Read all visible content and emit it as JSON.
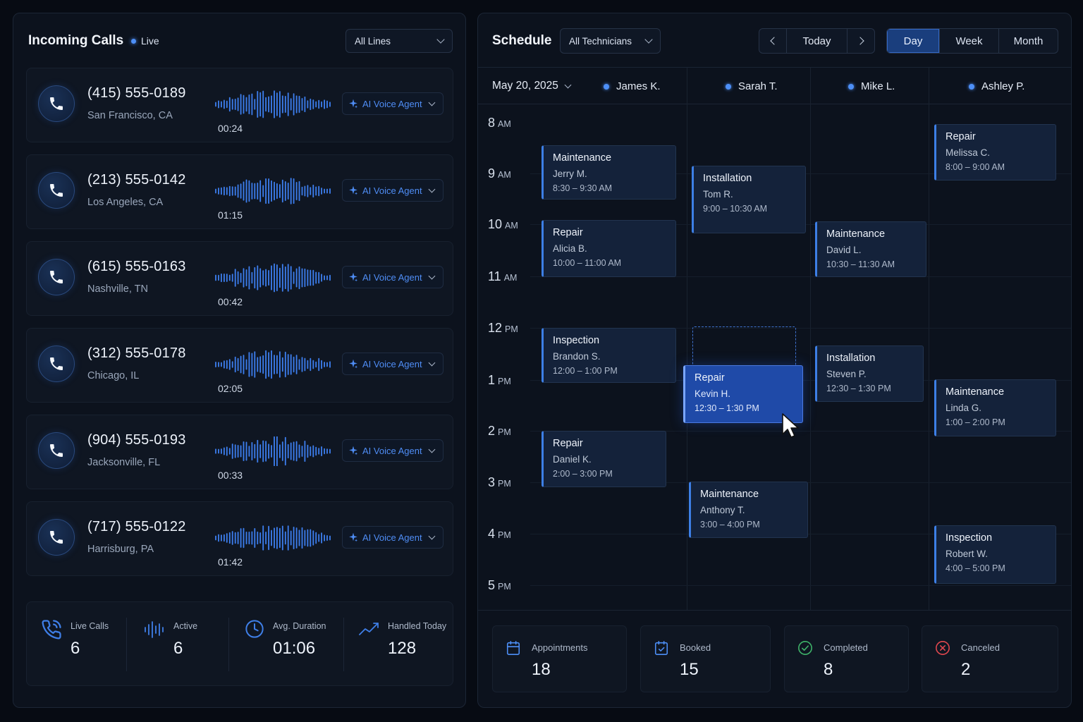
{
  "calls_panel": {
    "title": "Incoming Calls",
    "live_label": "Live",
    "lines_select": "All Lines",
    "agent_label": "AI Voice Agent",
    "calls": [
      {
        "number": "(415) 555-0189",
        "city": "San Francisco, CA",
        "duration": "00:24"
      },
      {
        "number": "(213) 555-0142",
        "city": "Los Angeles, CA",
        "duration": "01:15"
      },
      {
        "number": "(615) 555-0163",
        "city": "Nashville, TN",
        "duration": "00:42"
      },
      {
        "number": "(312) 555-0178",
        "city": "Chicago, IL",
        "duration": "02:05"
      },
      {
        "number": "(904) 555-0193",
        "city": "Jacksonville, FL",
        "duration": "00:33"
      },
      {
        "number": "(717) 555-0122",
        "city": "Harrisburg, PA",
        "duration": "01:42"
      }
    ],
    "stats": [
      {
        "label": "Live Calls",
        "value": "6",
        "icon": "phone-ringing-icon"
      },
      {
        "label": "Active",
        "value": "6",
        "icon": "waveform-icon"
      },
      {
        "label": "Avg. Duration",
        "value": "01:06",
        "icon": "clock-icon"
      },
      {
        "label": "Handled Today",
        "value": "128",
        "icon": "trend-line-icon"
      }
    ]
  },
  "schedule": {
    "title": "Schedule",
    "tech_select": "All Technicians",
    "today_label": "Today",
    "views": [
      "Day",
      "Week",
      "Month"
    ],
    "active_view": "Day",
    "date": "May 20, 2025",
    "technicians": [
      "James K.",
      "Sarah T.",
      "Mike L.",
      "Ashley P."
    ],
    "times": [
      {
        "hour": "8",
        "ap": "AM"
      },
      {
        "hour": "9",
        "ap": "AM"
      },
      {
        "hour": "10",
        "ap": "AM"
      },
      {
        "hour": "11",
        "ap": "AM"
      },
      {
        "hour": "12",
        "ap": "PM"
      },
      {
        "hour": "1",
        "ap": "PM"
      },
      {
        "hour": "2",
        "ap": "PM"
      },
      {
        "hour": "3",
        "ap": "PM"
      },
      {
        "hour": "4",
        "ap": "PM"
      },
      {
        "hour": "5",
        "ap": "PM"
      }
    ],
    "events": [
      {
        "type": "Maintenance",
        "name": "Jerry M.",
        "time": "8:30 – 9:30 AM"
      },
      {
        "type": "Repair",
        "name": "Alicia B.",
        "time": "10:00 – 11:00 AM"
      },
      {
        "type": "Inspection",
        "name": "Brandon S.",
        "time": "12:00 – 1:00 PM"
      },
      {
        "type": "Repair",
        "name": "Daniel K.",
        "time": "2:00 – 3:00 PM"
      },
      {
        "type": "Installation",
        "name": "Tom R.",
        "time": "9:00 – 10:30 AM"
      },
      {
        "type": "Repair",
        "name": "Kevin H.",
        "time": "12:30 – 1:30 PM"
      },
      {
        "type": "Maintenance",
        "name": "Anthony T.",
        "time": "3:00 – 4:00 PM"
      },
      {
        "type": "Maintenance",
        "name": "David L.",
        "time": "10:30 – 11:30 AM"
      },
      {
        "type": "Installation",
        "name": "Steven P.",
        "time": "12:30 – 1:30 PM"
      },
      {
        "type": "Repair",
        "name": "Melissa C.",
        "time": "8:00 – 9:00 AM"
      },
      {
        "type": "Maintenance",
        "name": "Linda G.",
        "time": "1:00 – 2:00 PM"
      },
      {
        "type": "Inspection",
        "name": "Robert W.",
        "time": "4:00 – 5:00 PM"
      }
    ],
    "stats": [
      {
        "label": "Appointments",
        "value": "18",
        "icon": "calendar-icon",
        "color": "#4d8ff7"
      },
      {
        "label": "Booked",
        "value": "15",
        "icon": "calendar-check-icon",
        "color": "#4d8ff7"
      },
      {
        "label": "Completed",
        "value": "8",
        "icon": "check-circle-icon",
        "color": "#3fb56a"
      },
      {
        "label": "Canceled",
        "value": "2",
        "icon": "x-circle-icon",
        "color": "#e2484f"
      }
    ]
  },
  "colors": {
    "accent": "#4d8ff7",
    "selected_event": "#1f4aa8",
    "success": "#3fb56a",
    "danger": "#e2484f"
  }
}
